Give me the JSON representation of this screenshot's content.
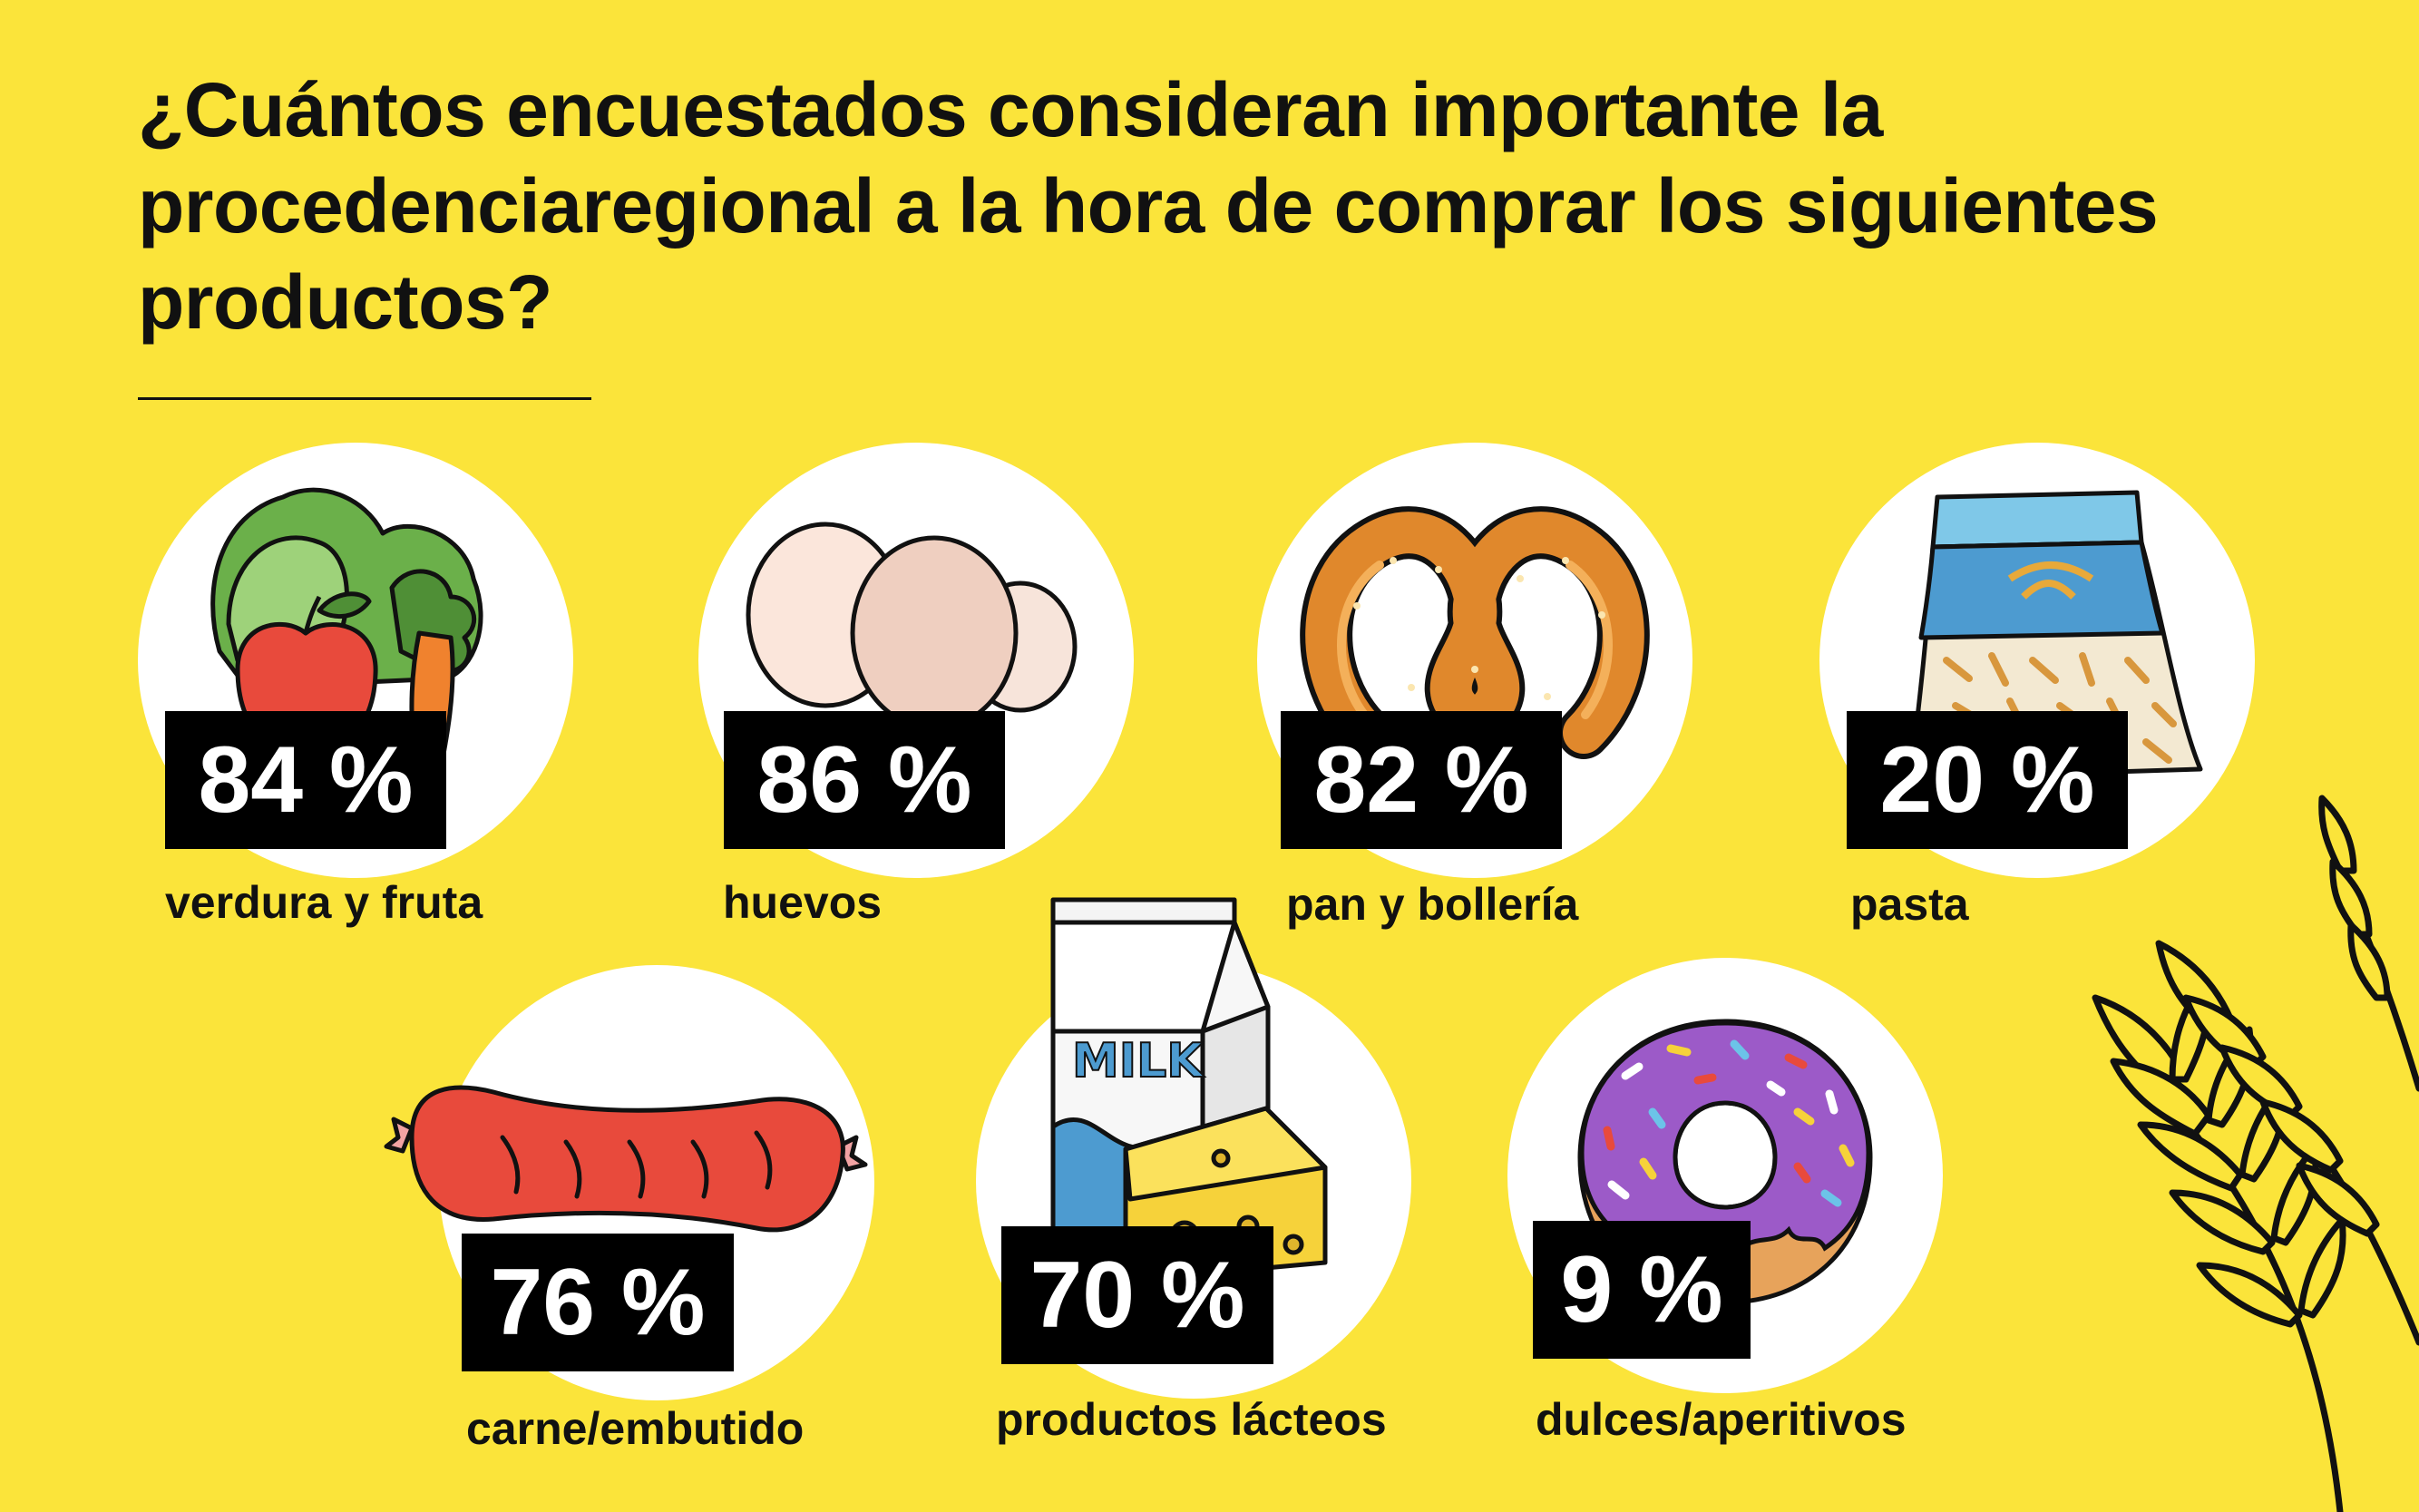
{
  "title": "¿Cuántos encuestados consideran importante la procedenciaregional a la hora de comprar los siguientes productos?",
  "colors": {
    "background": "#FBE43A",
    "badge": "#000000",
    "circle": "#FFFFFF"
  },
  "items": [
    {
      "id": "verdura",
      "percent": "84 %",
      "label": "verdura y fruta",
      "icon": "vegetables-icon"
    },
    {
      "id": "huevos",
      "percent": "86 %",
      "label": "huevos",
      "icon": "eggs-icon"
    },
    {
      "id": "pan",
      "percent": "82 %",
      "label": "pan y bollería",
      "icon": "pretzel-icon"
    },
    {
      "id": "pasta",
      "percent": "20 %",
      "label": "pasta",
      "icon": "pasta-bag-icon"
    },
    {
      "id": "carne",
      "percent": "76 %",
      "label": "carne/embutido",
      "icon": "sausage-icon"
    },
    {
      "id": "lacteos",
      "percent": "70 %",
      "label": "productos lácteos",
      "icon": "milk-cheese-icon",
      "milk_text": "MILK"
    },
    {
      "id": "dulces",
      "percent": "9 %",
      "label": "dulces/aperitivos",
      "icon": "donut-icon"
    }
  ]
}
